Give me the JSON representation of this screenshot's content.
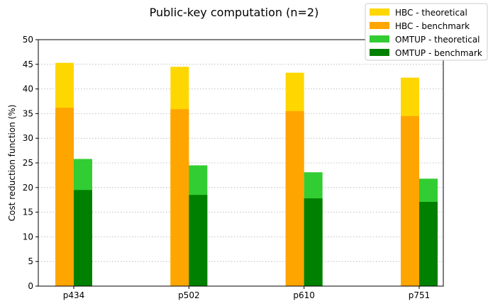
{
  "chart_data": {
    "type": "bar",
    "title": "Public-key computation (n=2)",
    "xlabel": "",
    "ylabel": "Cost reduction function (%)",
    "categories": [
      "p434",
      "p502",
      "p610",
      "p751"
    ],
    "ylim": [
      0,
      50
    ],
    "yticks": [
      0,
      5,
      10,
      15,
      20,
      25,
      30,
      35,
      40,
      45,
      50
    ],
    "grid": "y-dotted",
    "legend_position": "top-right",
    "series": [
      {
        "name": "HBC - theoretical",
        "group": "HBC",
        "values": [
          45.3,
          44.5,
          43.3,
          42.3
        ],
        "color": "#ffd700"
      },
      {
        "name": "HBC - benchmark",
        "group": "HBC",
        "values": [
          36.2,
          35.9,
          35.5,
          34.5
        ],
        "color": "#ffa500"
      },
      {
        "name": "OMTUP - theoretical",
        "group": "OMTUP",
        "values": [
          25.8,
          24.5,
          23.1,
          21.8
        ],
        "color": "#32cd32"
      },
      {
        "name": "OMTUP - benchmark",
        "group": "OMTUP",
        "values": [
          19.5,
          18.5,
          17.8,
          17.1
        ],
        "color": "#008000"
      }
    ]
  }
}
